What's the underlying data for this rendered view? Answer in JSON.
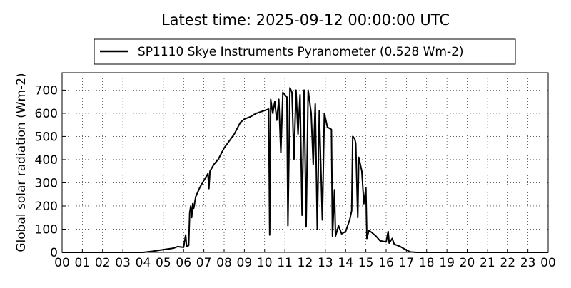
{
  "chart_data": {
    "type": "line",
    "title": "Latest time: 2025-09-12 00:00:00 UTC",
    "ylabel": "Global solar radiation (Wm-2)",
    "grid": true,
    "legend": "upper center",
    "xlim": [
      0,
      24
    ],
    "ylim": [
      0,
      775
    ],
    "xticks": [
      {
        "value": 0,
        "label": "00"
      },
      {
        "value": 1,
        "label": "01"
      },
      {
        "value": 2,
        "label": "02"
      },
      {
        "value": 3,
        "label": "03"
      },
      {
        "value": 4,
        "label": "04"
      },
      {
        "value": 5,
        "label": "05"
      },
      {
        "value": 6,
        "label": "06"
      },
      {
        "value": 7,
        "label": "07"
      },
      {
        "value": 8,
        "label": "08"
      },
      {
        "value": 9,
        "label": "09"
      },
      10,
      11,
      12,
      13,
      14,
      15,
      16,
      17,
      18,
      19,
      20,
      21,
      22,
      23,
      {
        "value": 24,
        "label": "00"
      }
    ],
    "yticks": [
      0,
      100,
      200,
      300,
      400,
      500,
      600,
      700
    ],
    "series": [
      {
        "name": "SP1110 Skye Instruments Pyranometer (0.528 Wm-2)",
        "color": "#000000",
        "x": [
          0,
          4.0,
          4.5,
          5.0,
          5.5,
          5.7,
          6.0,
          6.1,
          6.15,
          6.25,
          6.3,
          6.35,
          6.4,
          6.45,
          6.5,
          6.6,
          6.8,
          7.0,
          7.2,
          7.25,
          7.3,
          7.5,
          7.7,
          8.0,
          8.5,
          8.8,
          9.0,
          9.3,
          9.6,
          10.0,
          10.2,
          10.25,
          10.3,
          10.4,
          10.5,
          10.6,
          10.7,
          10.8,
          10.9,
          11.1,
          11.15,
          11.25,
          11.35,
          11.45,
          11.55,
          11.65,
          11.75,
          11.85,
          11.95,
          12.05,
          12.15,
          12.3,
          12.4,
          12.5,
          12.6,
          12.7,
          12.85,
          12.95,
          13.1,
          13.3,
          13.35,
          13.45,
          13.5,
          13.65,
          13.8,
          14.0,
          14.2,
          14.3,
          14.35,
          14.45,
          14.5,
          14.6,
          14.65,
          14.8,
          14.9,
          15.0,
          15.05,
          15.15,
          15.3,
          15.5,
          15.7,
          16.0,
          16.1,
          16.15,
          16.3,
          16.4,
          16.7,
          17.0,
          17.2,
          17.5,
          24
        ],
        "values": [
          0,
          0,
          5,
          12,
          18,
          25,
          22,
          75,
          25,
          30,
          170,
          200,
          150,
          210,
          190,
          240,
          280,
          310,
          340,
          275,
          350,
          380,
          400,
          450,
          510,
          560,
          575,
          585,
          600,
          612,
          618,
          75,
          660,
          600,
          650,
          570,
          660,
          430,
          690,
          670,
          115,
          710,
          690,
          400,
          700,
          510,
          680,
          160,
          700,
          110,
          700,
          600,
          380,
          640,
          100,
          610,
          140,
          600,
          540,
          530,
          70,
          270,
          70,
          115,
          80,
          90,
          140,
          180,
          500,
          490,
          470,
          150,
          410,
          350,
          210,
          280,
          60,
          95,
          85,
          70,
          50,
          45,
          90,
          40,
          60,
          35,
          25,
          10,
          2,
          0,
          0
        ]
      }
    ]
  }
}
